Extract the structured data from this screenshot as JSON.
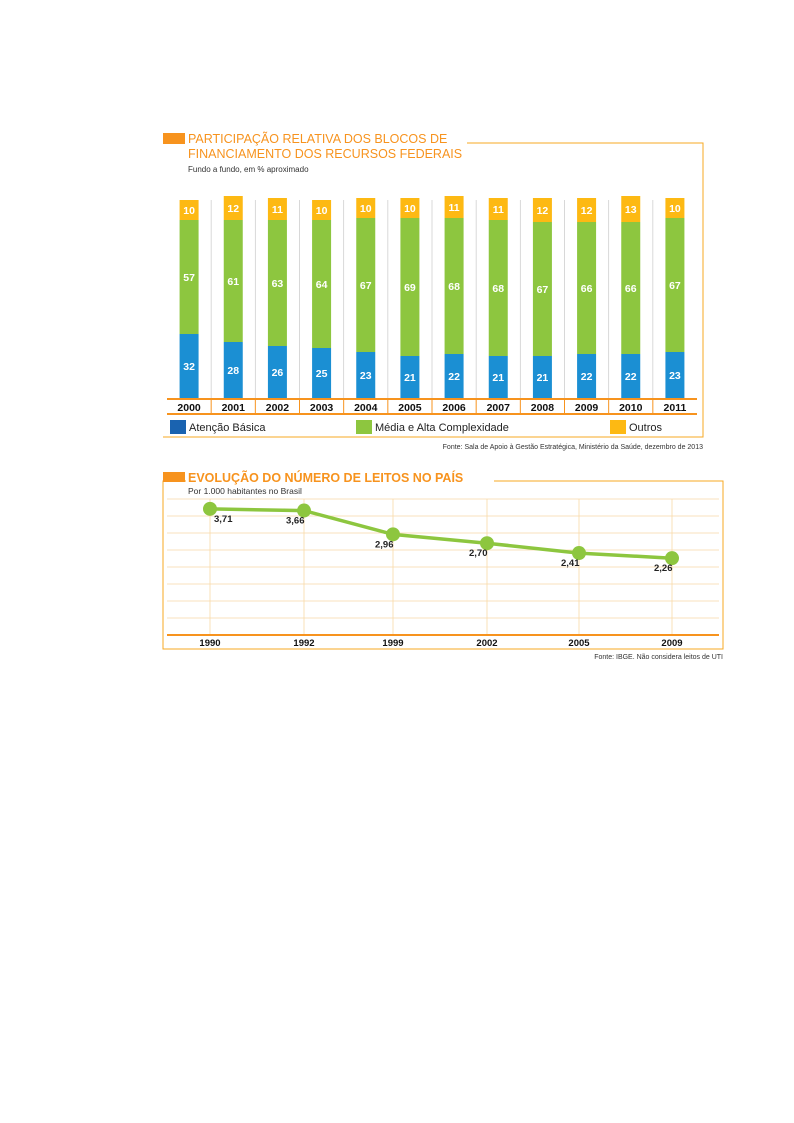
{
  "chart_data": [
    {
      "type": "bar",
      "stacked": true,
      "title": "PARTICIPAÇÃO RELATIVA DOS BLOCOS DE FINANCIAMENTO DOS RECURSOS FEDERAIS",
      "title_lines": [
        "PARTICIPAÇÃO RELATIVA DOS BLOCOS DE",
        "FINANCIAMENTO DOS RECURSOS FEDERAIS"
      ],
      "subtitle": "Fundo a fundo, em % aproximado",
      "categories": [
        "2000",
        "2001",
        "2002",
        "2003",
        "2004",
        "2005",
        "2006",
        "2007",
        "2008",
        "2009",
        "2010",
        "2011"
      ],
      "series": [
        {
          "name": "Atenção Básica",
          "color": "#1b8fd3",
          "values": [
            32,
            28,
            26,
            25,
            23,
            21,
            22,
            21,
            21,
            22,
            22,
            23
          ]
        },
        {
          "name": "Média e Alta Complexidade",
          "color": "#8dc63f",
          "values": [
            57,
            61,
            63,
            64,
            67,
            69,
            68,
            68,
            67,
            66,
            66,
            67
          ]
        },
        {
          "name": "Outros",
          "color": "#fdb913",
          "values": [
            10,
            12,
            11,
            10,
            10,
            10,
            11,
            11,
            12,
            12,
            13,
            10
          ]
        }
      ],
      "legend_position": "bottom",
      "legend_colors": [
        "#1a63b0",
        "#8dc63f",
        "#fdb913"
      ],
      "source": "Fonte: Sala de Apoio à Gestão Estratégica, Ministério da Saúde, dezembro de 2013",
      "frame_color": "#f7a823"
    },
    {
      "type": "line",
      "title": "EVOLUÇÃO DO NÚMERO DE LEITOS NO PAÍS",
      "subtitle": "Por 1.000 habitantes no Brasil",
      "x": [
        "1990",
        "1992",
        "1999",
        "2002",
        "2005",
        "2009"
      ],
      "series": [
        {
          "color": "#8dc63f",
          "values": [
            3.71,
            3.66,
            2.96,
            2.7,
            2.41,
            2.26
          ],
          "labels": [
            "3,71",
            "3,66",
            "2,96",
            "2,70",
            "2,41",
            "2,26"
          ]
        }
      ],
      "ylim": [
        0,
        4
      ],
      "grid": true,
      "source": "Fonte: IBGE. Não considera leitos de UTI",
      "frame_color": "#f7a823"
    }
  ]
}
